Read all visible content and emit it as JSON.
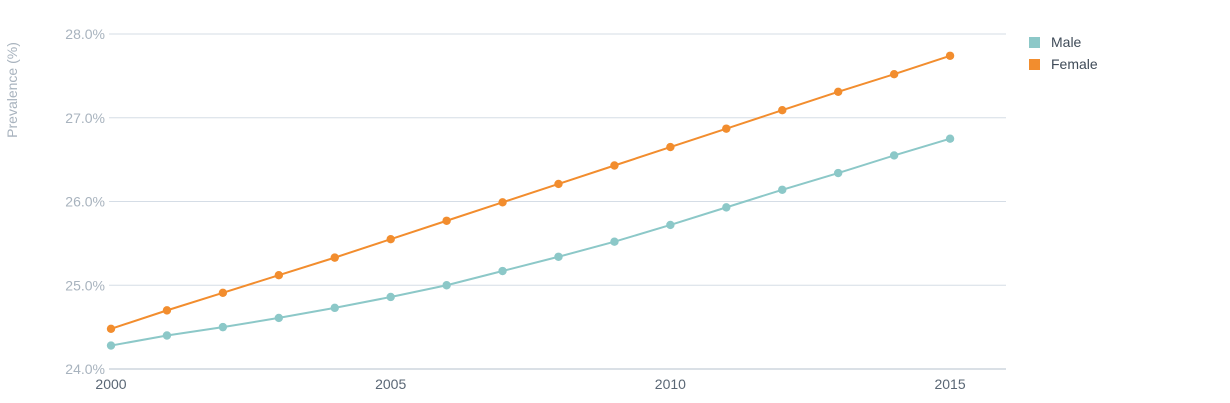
{
  "chart_data": {
    "type": "line",
    "title": "",
    "xlabel": "",
    "ylabel": "Prevalence (%)",
    "x": [
      2000,
      2001,
      2002,
      2003,
      2004,
      2005,
      2006,
      2007,
      2008,
      2009,
      2010,
      2011,
      2012,
      2013,
      2014,
      2015
    ],
    "xlim": [
      2000,
      2016
    ],
    "ylim": [
      24.0,
      28.0
    ],
    "x_ticks": [
      2000,
      2005,
      2010,
      2015
    ],
    "x_tick_labels": [
      "2000",
      "2005",
      "2010",
      "2015"
    ],
    "y_ticks": [
      24.0,
      25.0,
      26.0,
      27.0,
      28.0
    ],
    "y_tick_labels": [
      "24.0%",
      "25.0%",
      "26.0%",
      "27.0%",
      "28.0%"
    ],
    "grid": true,
    "legend_position": "top-right",
    "series": [
      {
        "name": "Male",
        "color": "#8cc8c8",
        "values": [
          24.28,
          24.4,
          24.5,
          24.61,
          24.73,
          24.86,
          25.0,
          25.17,
          25.34,
          25.52,
          25.72,
          25.93,
          26.14,
          26.34,
          26.55,
          26.75
        ]
      },
      {
        "name": "Female",
        "color": "#f28d2e",
        "values": [
          24.48,
          24.7,
          24.91,
          25.12,
          25.33,
          25.55,
          25.77,
          25.99,
          26.21,
          26.43,
          26.65,
          26.87,
          27.09,
          27.31,
          27.52,
          27.74
        ]
      }
    ]
  }
}
